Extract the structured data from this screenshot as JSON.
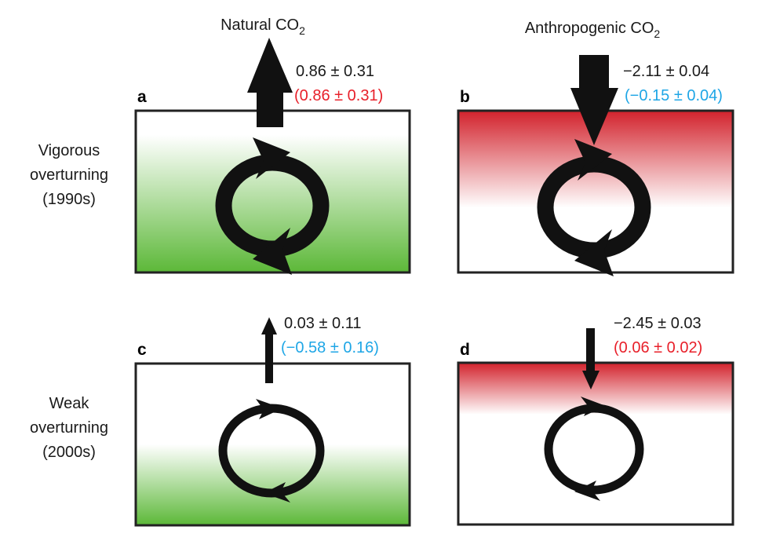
{
  "columns": {
    "natural": {
      "title": "Natural CO",
      "sub": "2"
    },
    "anthropogenic": {
      "title": "Anthropogenic CO",
      "sub": "2"
    }
  },
  "rows": {
    "vigorous": {
      "line1": "Vigorous",
      "line2": "overturning",
      "line3": "(1990s)"
    },
    "weak": {
      "line1": "Weak",
      "line2": "overturning",
      "line3": "(2000s)"
    }
  },
  "panels": {
    "a": {
      "label": "a",
      "value": "0.86 ± 0.31",
      "value2": "(0.86 ± 0.31)",
      "value2_color": "#e8202a",
      "fill": "green",
      "arrow": "up"
    },
    "b": {
      "label": "b",
      "value": "−2.11 ± 0.04",
      "value2": "(−0.15 ± 0.04)",
      "value2_color": "#1ea6e6",
      "fill": "red",
      "arrow": "down"
    },
    "c": {
      "label": "c",
      "value": "0.03 ± 0.11",
      "value2": "(−0.58 ± 0.16)",
      "value2_color": "#1ea6e6",
      "fill": "green",
      "arrow": "up"
    },
    "d": {
      "label": "d",
      "value": "−2.45 ± 0.03",
      "value2": "(0.06 ± 0.02)",
      "value2_color": "#e8202a",
      "fill": "red",
      "arrow": "down"
    }
  },
  "colors": {
    "green": "#5cb838",
    "red": "#d2222c",
    "red_text": "#e8202a",
    "blue_text": "#1ea6e6"
  }
}
